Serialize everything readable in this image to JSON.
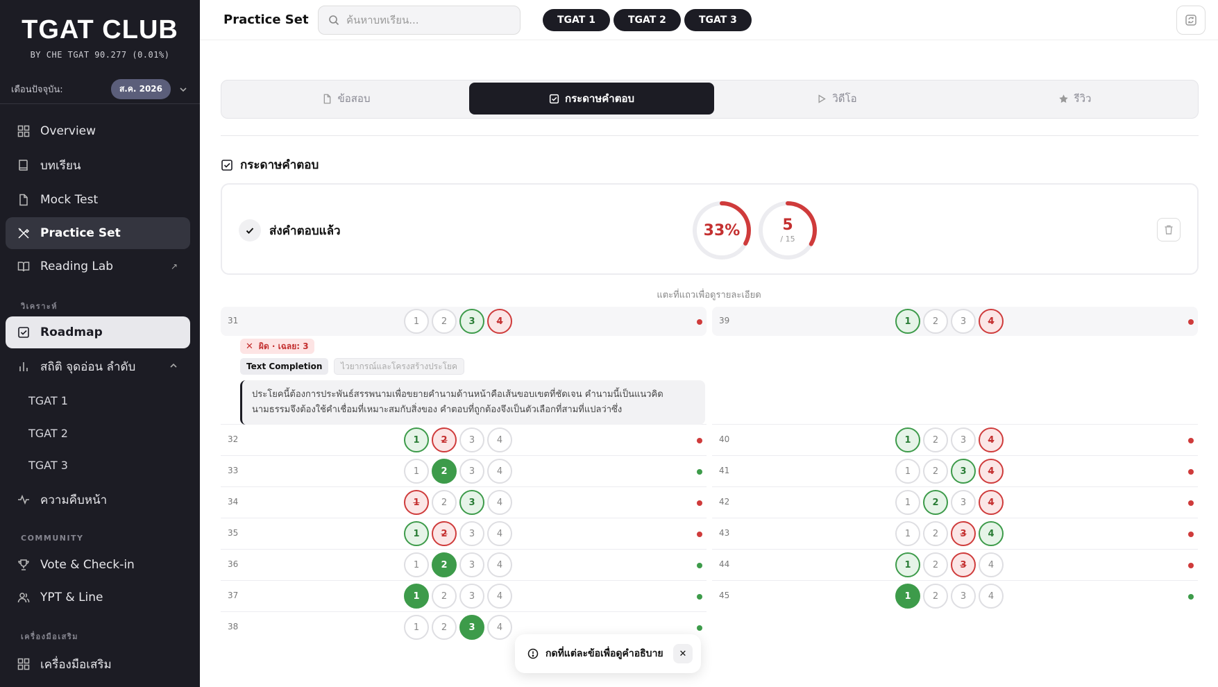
{
  "brand": {
    "title": "TGAT CLUB",
    "subtitle": "BY CHE TGAT 90.277 (0.01%)"
  },
  "month": {
    "label": "เดือนปัจจุบัน:",
    "value": "ส.ค. 2026"
  },
  "sidebar": {
    "items": [
      {
        "label": "Overview",
        "icon": "grid-icon"
      },
      {
        "label": "บทเรียน",
        "icon": "book-icon"
      },
      {
        "label": "Mock Test",
        "icon": "file-icon"
      },
      {
        "label": "Practice Set",
        "icon": "pencil-ruler-icon"
      },
      {
        "label": "Reading Lab",
        "icon": "open-book-icon"
      }
    ],
    "analysis_label": "วิเคราะห์",
    "roadmap": "Roadmap",
    "stats": "สถิติ จุดอ่อน ลำดับ",
    "stats_sub": [
      "TGAT 1",
      "TGAT 2",
      "TGAT 3"
    ],
    "progress": "ความคืบหน้า",
    "community_label": "COMMUNITY",
    "vote": "Vote & Check-in",
    "ypt": "YPT & Line",
    "tools_label": "เครื่องมือเสริม",
    "tools": "เครื่องมือเสริม"
  },
  "topbar": {
    "title": "Practice Set",
    "search_placeholder": "ค้นหาบทเรียน...",
    "chips": [
      "TGAT 1",
      "TGAT 2",
      "TGAT 3"
    ]
  },
  "tabs": [
    {
      "label": "ข้อสอบ",
      "icon": "file-icon"
    },
    {
      "label": "กระดาษคำตอบ",
      "icon": "check-square-icon"
    },
    {
      "label": "วิดีโอ",
      "icon": "play-icon"
    },
    {
      "label": "รีวิว",
      "icon": "star-icon"
    }
  ],
  "section_title": "กระดาษคำตอบ",
  "summary": {
    "status": "ส่งคำตอบแล้ว",
    "percent": 33,
    "percent_label": "33%",
    "score": "5",
    "total": "/ 15",
    "score_value": 5,
    "total_value": 15
  },
  "hint": "แตะที่แถวเพื่อดูรายละเอียด",
  "detail": {
    "badge": "ผิด · เฉลย: 3",
    "tag1": "Text Completion",
    "tag2": "ไวยากรณ์และโครงสร้างประโยค",
    "explain": "ประโยคนี้ต้องการประพันธ์สรรพนามเพื่อขยายคำนามด้านหน้าคือเส้นขอบเขตที่ชัดเจน คำนามนี้เป็นแนวคิดนามธรรมจึงต้องใช้คำเชื่อมที่เหมาะสมกับสิ่งของ คำตอบที่ถูกต้องจึงเป็นตัวเลือกที่สามที่แปลว่าซึ่ง"
  },
  "answers_left": [
    {
      "q": "31",
      "states": [
        "n",
        "n",
        "cg",
        "wr"
      ],
      "ok": false
    },
    {
      "q": "32",
      "states": [
        "cg",
        "wr",
        "n",
        "n"
      ],
      "ok": false
    },
    {
      "q": "33",
      "states": [
        "n",
        "cf",
        "n",
        "n"
      ],
      "ok": true
    },
    {
      "q": "34",
      "states": [
        "wr",
        "n",
        "cg",
        "n"
      ],
      "ok": false
    },
    {
      "q": "35",
      "states": [
        "cg",
        "wr",
        "n",
        "n"
      ],
      "ok": false
    },
    {
      "q": "36",
      "states": [
        "n",
        "cf",
        "n",
        "n"
      ],
      "ok": true
    },
    {
      "q": "37",
      "states": [
        "cf",
        "n",
        "n",
        "n"
      ],
      "ok": true
    },
    {
      "q": "38",
      "states": [
        "n",
        "n",
        "cf",
        "n"
      ],
      "ok": true
    }
  ],
  "answers_right": [
    {
      "q": "39",
      "states": [
        "cg",
        "n",
        "n",
        "wr"
      ],
      "ok": false
    },
    {
      "q": "40",
      "states": [
        "cg",
        "n",
        "n",
        "wr"
      ],
      "ok": false
    },
    {
      "q": "41",
      "states": [
        "n",
        "n",
        "cg",
        "wr"
      ],
      "ok": false
    },
    {
      "q": "42",
      "states": [
        "n",
        "cg",
        "n",
        "wr"
      ],
      "ok": false
    },
    {
      "q": "43",
      "states": [
        "n",
        "n",
        "wr",
        "cg"
      ],
      "ok": false
    },
    {
      "q": "44",
      "states": [
        "cg",
        "n",
        "wr",
        "n"
      ],
      "ok": false
    },
    {
      "q": "45",
      "states": [
        "cf",
        "n",
        "n",
        "n"
      ],
      "ok": true
    }
  ],
  "toast": "กดที่แต่ละข้อเพื่อดูคำอธิบาย",
  "colors": {
    "correct": "#3d9b4a",
    "wrong": "#cf3b3b",
    "dark": "#1c1c24"
  }
}
